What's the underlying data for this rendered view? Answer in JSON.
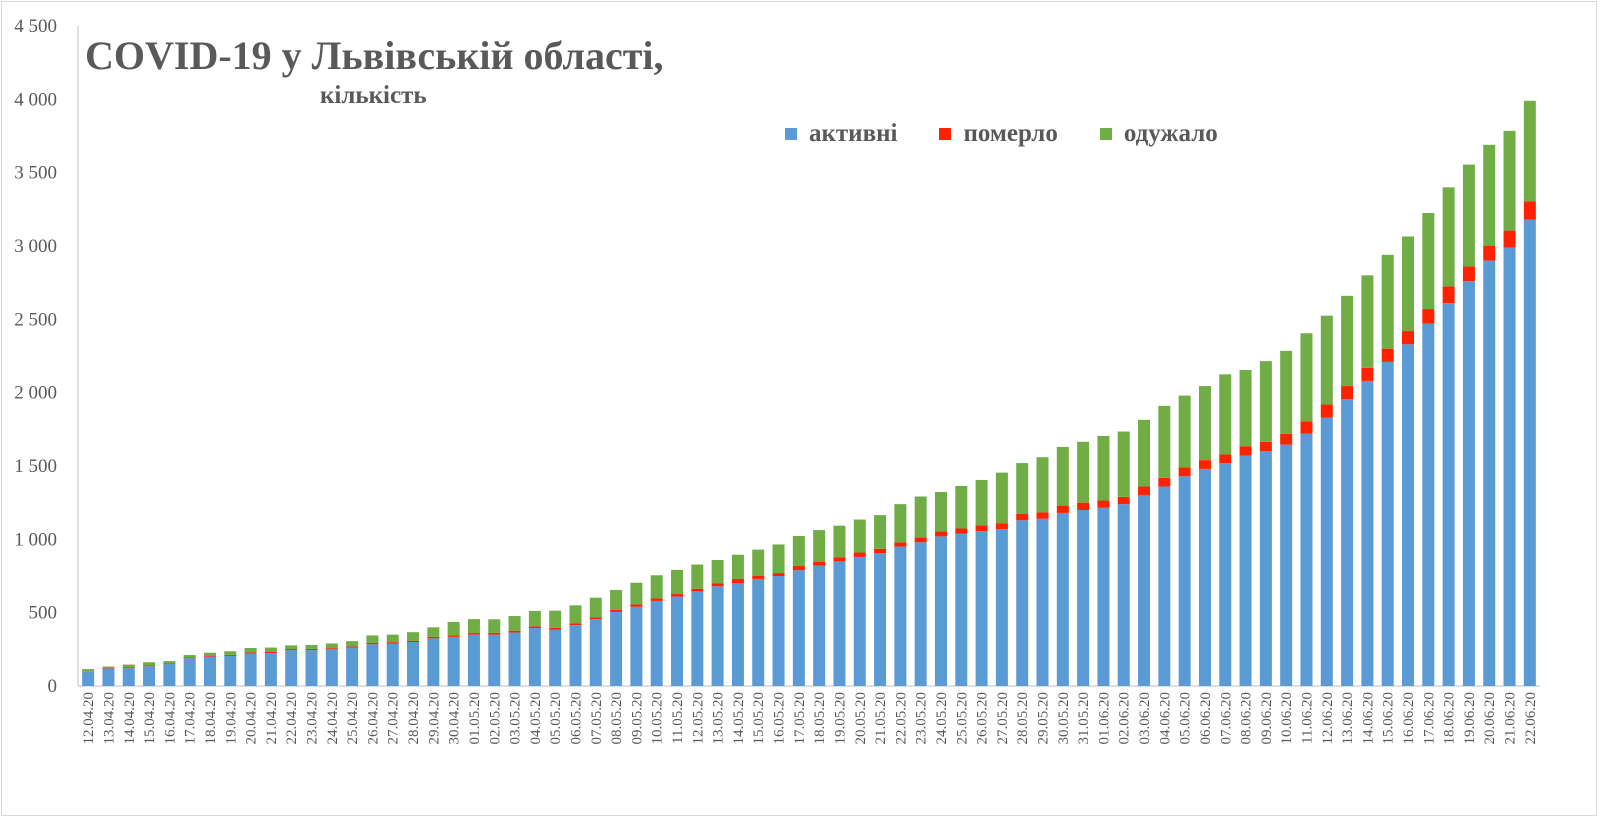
{
  "chart_data": {
    "type": "bar",
    "stacked": true,
    "title": "COVID-19 у Львівській області,",
    "subtitle": "кількість",
    "ylim": [
      0,
      4500
    ],
    "yticks": [
      0,
      500,
      1000,
      1500,
      2000,
      2500,
      3000,
      3500,
      4000,
      4500
    ],
    "ytick_labels": [
      "0",
      "500",
      "1 000",
      "1 500",
      "2 000",
      "2 500",
      "3 000",
      "3 500",
      "4 000",
      "4 500"
    ],
    "legend_position": "top-right",
    "categories": [
      "12.04.20",
      "13.04.20",
      "14.04.20",
      "15.04.20",
      "16.04.20",
      "17.04.20",
      "18.04.20",
      "19.04.20",
      "20.04.20",
      "21.04.20",
      "22.04.20",
      "23.04.20",
      "24.04.20",
      "25.04.20",
      "26.04.20",
      "27.04.20",
      "28.04.20",
      "29.04.20",
      "30.04.20",
      "01.05.20",
      "02.05.20",
      "03.05.20",
      "04.05.20",
      "05.05.20",
      "06.05.20",
      "07.05.20",
      "08.05.20",
      "09.05.20",
      "10.05.20",
      "11.05.20",
      "12.05.20",
      "13.05.20",
      "14.05.20",
      "15.05.20",
      "16.05.20",
      "17.05.20",
      "18.05.20",
      "19.05.20",
      "20.05.20",
      "21.05.20",
      "22.05.20",
      "23.05.20",
      "24.05.20",
      "25.05.20",
      "26.05.20",
      "27.05.20",
      "28.05.20",
      "29.05.20",
      "30.05.20",
      "31.05.20",
      "01.06.20",
      "02.06.20",
      "03.06.20",
      "04.06.20",
      "05.06.20",
      "06.06.20",
      "07.06.20",
      "08.06.20",
      "09.06.20",
      "10.06.20",
      "11.06.20",
      "12.06.20",
      "13.06.20",
      "14.06.20",
      "15.06.20",
      "16.06.20",
      "17.06.20",
      "18.06.20",
      "19.06.20",
      "20.06.20",
      "21.06.20",
      "22.06.20"
    ],
    "series": [
      {
        "name": "активні",
        "color": "#5b9bd5",
        "values": [
          95,
          120,
          122,
          135,
          150,
          190,
          200,
          205,
          222,
          225,
          245,
          245,
          250,
          262,
          285,
          290,
          300,
          325,
          335,
          350,
          350,
          365,
          395,
          385,
          415,
          455,
          505,
          540,
          580,
          610,
          645,
          680,
          700,
          730,
          750,
          790,
          820,
          850,
          880,
          905,
          950,
          980,
          1020,
          1040,
          1055,
          1070,
          1130,
          1140,
          1180,
          1200,
          1215,
          1240,
          1300,
          1360,
          1430,
          1480,
          1520,
          1570,
          1600,
          1645,
          1720,
          1830,
          1955,
          2080,
          2210,
          2330,
          2470,
          2610,
          2760,
          2900,
          2990,
          3180
        ]
      },
      {
        "name": "померло",
        "color": "#ff2200",
        "values": [
          2,
          3,
          4,
          5,
          5,
          6,
          7,
          7,
          7,
          7,
          7,
          8,
          8,
          8,
          9,
          9,
          9,
          10,
          10,
          11,
          12,
          12,
          12,
          12,
          13,
          14,
          15,
          16,
          17,
          17,
          18,
          19,
          30,
          20,
          20,
          28,
          28,
          28,
          30,
          30,
          30,
          32,
          33,
          34,
          40,
          40,
          45,
          45,
          50,
          50,
          50,
          50,
          60,
          60,
          60,
          60,
          60,
          65,
          65,
          75,
          85,
          90,
          90,
          90,
          90,
          90,
          100,
          115,
          100,
          100,
          115,
          125
        ]
      },
      {
        "name": "одужало",
        "color": "#70ad47",
        "values": [
          18,
          10,
          20,
          22,
          15,
          15,
          20,
          25,
          30,
          30,
          25,
          27,
          32,
          36,
          51,
          51,
          58,
          65,
          92,
          95,
          93,
          100,
          105,
          117,
          122,
          133,
          135,
          148,
          158,
          165,
          165,
          160,
          165,
          180,
          195,
          205,
          215,
          215,
          225,
          230,
          260,
          280,
          270,
          290,
          310,
          345,
          345,
          375,
          400,
          415,
          440,
          445,
          455,
          490,
          490,
          505,
          545,
          520,
          550,
          565,
          600,
          605,
          615,
          630,
          640,
          645,
          655,
          675,
          695,
          690,
          680,
          685
        ]
      }
    ]
  }
}
